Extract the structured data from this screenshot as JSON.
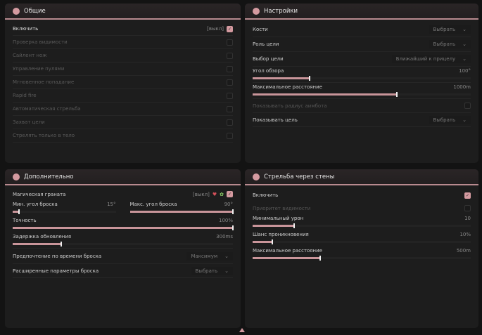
{
  "accent": "#c9959a",
  "general": {
    "title": "Общие",
    "icon": "user-group-icon",
    "enable": {
      "label": "Включить",
      "state": "[выкл]",
      "checked": true
    },
    "items": [
      {
        "label": "Проверка видимости"
      },
      {
        "label": "Сайлент нож"
      },
      {
        "label": "Управление пулями"
      },
      {
        "label": "Мгновенное попадание"
      },
      {
        "label": "Rapid fire"
      },
      {
        "label": "Автоматическая стрельба"
      },
      {
        "label": "Захват цели"
      },
      {
        "label": "Стрелять только в тело"
      }
    ]
  },
  "settings": {
    "title": "Настройки",
    "icon": "gear-icon",
    "bones": {
      "label": "Кости",
      "value": "Выбрать"
    },
    "target_role": {
      "label": "Роль цели",
      "value": "Выбрать"
    },
    "target_select": {
      "label": "Выбор цели",
      "value": "Ближайший к прицелу"
    },
    "fov": {
      "label": "Угол обзора",
      "value": "100°",
      "fraction": 0.26
    },
    "max_distance": {
      "label": "Максимальное расстояние",
      "value": "1000m",
      "fraction": 0.66
    },
    "show_radius": {
      "label": "Показывать радиус аимбота"
    },
    "show_target": {
      "label": "Показывать цель",
      "value": "Выбрать"
    }
  },
  "extra": {
    "title": "Дополнительно",
    "icon": "user-group-icon",
    "magic": {
      "label": "Магическая граната",
      "state": "[выкл]"
    },
    "min_angle": {
      "label": "Мин. угол броска",
      "value": "15°",
      "fraction": 0.06
    },
    "max_angle": {
      "label": "Макс. угол броска",
      "value": "90°",
      "fraction": 1
    },
    "accuracy": {
      "label": "Точность",
      "value": "100%",
      "fraction": 1
    },
    "delay": {
      "label": "Задержка обновления",
      "value": "300ms",
      "fraction": 0.22
    },
    "pref": {
      "label": "Предпочтение по времени броска",
      "value": "Максимум"
    },
    "advanced": {
      "label": "Расширенные параметры броска",
      "value": "Выбрать"
    }
  },
  "wallbang": {
    "title": "Стрельба через стены",
    "icon": "gear-icon",
    "enable": {
      "label": "Включить",
      "checked": true
    },
    "priority": {
      "label": "Приоритет видимости"
    },
    "min_damage": {
      "label": "Минимальный урон",
      "value": "10",
      "fraction": 0.19
    },
    "chance": {
      "label": "Шанс проникновения",
      "value": "10%",
      "fraction": 0.09
    },
    "max_distance": {
      "label": "Максимальное расстояние",
      "value": "500m",
      "fraction": 0.31
    }
  }
}
